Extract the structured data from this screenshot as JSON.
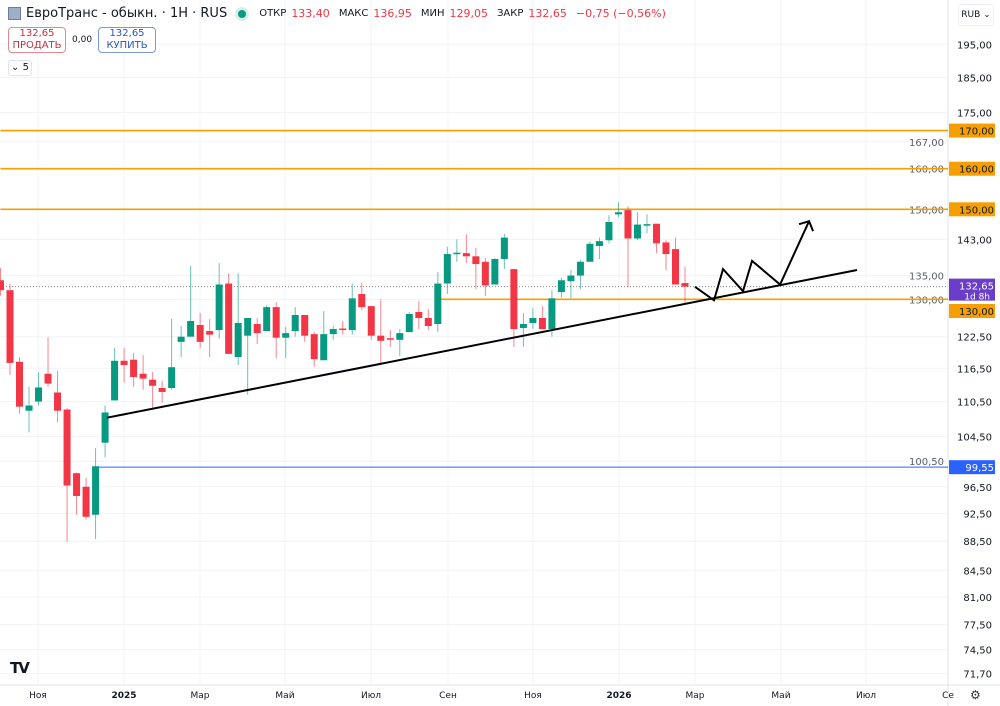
{
  "header": {
    "title": "ЕвроТранс - обыкн. · 1Н · RUS",
    "ohlc": [
      {
        "label": "ОТКР",
        "value": "133,40"
      },
      {
        "label": "МАКС",
        "value": "136,95"
      },
      {
        "label": "МИН",
        "value": "129,05"
      },
      {
        "label": "ЗАКР",
        "value": "132,65"
      }
    ],
    "change": "−0,75 (−0,56%)",
    "market_status_color": "#089981"
  },
  "trade": {
    "sell_price": "132,65",
    "sell_label": "ПРОДАТЬ",
    "spread": "0,00",
    "buy_price": "132,65",
    "buy_label": "КУПИТЬ"
  },
  "indicators_toggle": "5",
  "currency": "RUB",
  "colors": {
    "up": "#089981",
    "down": "#f23645",
    "level": "#f5a000",
    "support": "#2962ff",
    "last_price": "#6a3ec8",
    "trend": "#000000"
  },
  "chart_data": {
    "type": "candlestick",
    "scale": "log",
    "ylim": [
      71,
      199
    ],
    "grid": true,
    "y_ticks": [
      "195,00",
      "185,00",
      "175,00",
      "167,00",
      "160,00",
      "150,00",
      "143,00",
      "135,00",
      "130,00",
      "122,50",
      "116,50",
      "110,50",
      "104,50",
      "100,50",
      "96,50",
      "92,50",
      "88,50",
      "84,50",
      "81,00",
      "77,50",
      "74,50",
      "71,70"
    ],
    "y_tick_values": [
      195,
      185,
      175,
      167,
      160,
      150,
      143,
      135,
      130,
      122.5,
      116.5,
      110.5,
      104.5,
      100.5,
      96.5,
      92.5,
      88.5,
      84.5,
      81,
      77.5,
      74.5,
      71.7
    ],
    "x_ticks": [
      "Ноя",
      "2025",
      "Мар",
      "Май",
      "Июл",
      "Сен",
      "Ноя",
      "2026",
      "Мар",
      "Май",
      "Июл",
      "Се"
    ],
    "candles": [
      [
        134.0,
        136.6,
        130.8,
        131.9
      ],
      [
        131.9,
        133.3,
        115.3,
        117.5
      ],
      [
        117.7,
        118.6,
        108.4,
        109.6
      ],
      [
        108.9,
        113.1,
        105.2,
        109.8
      ],
      [
        110.5,
        115.8,
        109.8,
        113.0
      ],
      [
        115.5,
        122.4,
        113.1,
        113.7
      ],
      [
        112.1,
        116.0,
        106.9,
        108.9
      ],
      [
        109.1,
        109.4,
        88.4,
        96.7
      ],
      [
        98.6,
        98.7,
        92.3,
        95.1
      ],
      [
        96.5,
        97.9,
        91.6,
        92.0
      ],
      [
        92.3,
        102.6,
        88.8,
        99.7
      ],
      [
        103.5,
        109.8,
        101.1,
        108.6
      ],
      [
        110.7,
        120.3,
        110.7,
        117.9
      ],
      [
        117.9,
        120.3,
        113.9,
        117.1
      ],
      [
        118.1,
        119.4,
        113.1,
        114.9
      ],
      [
        115.5,
        119.0,
        112.6,
        114.6
      ],
      [
        114.4,
        115.8,
        109.4,
        113.3
      ],
      [
        112.9,
        114.2,
        110.3,
        112.2
      ],
      [
        112.9,
        126.0,
        112.6,
        116.7
      ],
      [
        121.5,
        124.6,
        118.6,
        122.5
      ],
      [
        122.5,
        137.1,
        122.5,
        125.6
      ],
      [
        124.8,
        127.2,
        120.3,
        121.5
      ],
      [
        123.6,
        126.0,
        118.6,
        122.9
      ],
      [
        123.8,
        137.7,
        122.1,
        133.1
      ],
      [
        133.3,
        135.5,
        119.2,
        119.2
      ],
      [
        118.6,
        135.5,
        117.1,
        125.2
      ],
      [
        122.7,
        126.2,
        111.7,
        126.2
      ],
      [
        125.0,
        126.2,
        121.1,
        123.2
      ],
      [
        123.6,
        128.8,
        123.6,
        128.4
      ],
      [
        128.4,
        129.4,
        118.4,
        122.3
      ],
      [
        122.3,
        124.4,
        118.4,
        123.2
      ],
      [
        123.6,
        128.4,
        122.5,
        126.8
      ],
      [
        126.8,
        126.8,
        121.5,
        122.7
      ],
      [
        123.0,
        123.4,
        116.8,
        118.2
      ],
      [
        118.0,
        127.6,
        118.0,
        123.0
      ],
      [
        123.0,
        124.6,
        121.9,
        124.0
      ],
      [
        124.1,
        125.6,
        122.9,
        123.9
      ],
      [
        123.8,
        133.3,
        122.9,
        130.2
      ],
      [
        131.1,
        133.5,
        127.8,
        128.4
      ],
      [
        128.6,
        128.6,
        121.9,
        122.7
      ],
      [
        122.7,
        130.0,
        117.5,
        121.7
      ],
      [
        122.2,
        123.8,
        120.5,
        122.0
      ],
      [
        121.9,
        124.0,
        118.8,
        123.2
      ],
      [
        123.4,
        127.4,
        123.4,
        127.0
      ],
      [
        127.4,
        129.6,
        124.0,
        126.2
      ],
      [
        126.2,
        128.0,
        123.8,
        124.6
      ],
      [
        125.0,
        135.8,
        123.4,
        133.3
      ],
      [
        133.3,
        141.3,
        131.1,
        139.7
      ],
      [
        139.8,
        143.0,
        138.0,
        140.0
      ],
      [
        139.9,
        144.1,
        137.7,
        139.2
      ],
      [
        139.2,
        141.1,
        132.1,
        137.5
      ],
      [
        138.0,
        138.8,
        130.7,
        132.9
      ],
      [
        133.1,
        138.8,
        133.1,
        138.6
      ],
      [
        138.6,
        144.3,
        136.4,
        143.4
      ],
      [
        136.4,
        136.4,
        120.5,
        124.0
      ],
      [
        124.2,
        127.2,
        120.5,
        125.0
      ],
      [
        125.2,
        128.2,
        124.0,
        126.2
      ],
      [
        126.2,
        128.6,
        124.0,
        124.0
      ],
      [
        124.0,
        131.9,
        122.5,
        130.2
      ],
      [
        131.5,
        134.6,
        130.4,
        134.0
      ],
      [
        133.8,
        136.2,
        130.2,
        135.0
      ],
      [
        135.0,
        138.4,
        132.1,
        138.0
      ],
      [
        138.0,
        142.5,
        138.0,
        142.0
      ],
      [
        141.5,
        143.4,
        138.6,
        142.6
      ],
      [
        142.8,
        148.6,
        142.1,
        147.0
      ],
      [
        148.8,
        151.7,
        148.1,
        149.3
      ],
      [
        149.8,
        150.7,
        132.5,
        143.2
      ],
      [
        143.2,
        149.3,
        142.8,
        146.4
      ],
      [
        146.3,
        148.8,
        144.4,
        146.5
      ],
      [
        146.6,
        146.6,
        139.9,
        142.1
      ],
      [
        142.3,
        142.8,
        136.2,
        139.7
      ],
      [
        140.8,
        143.4,
        133.1,
        133.1
      ],
      [
        133.4,
        136.95,
        129.05,
        132.65
      ]
    ],
    "last_price": {
      "value": 132.65,
      "label": "132,65",
      "countdown": "1d 8h"
    },
    "levels": [
      {
        "price": 170,
        "label": "170,00",
        "color": "#f5a000",
        "from_bar": 0
      },
      {
        "price": 160,
        "label": "160,00",
        "color": "#f5a000",
        "from_bar": 0
      },
      {
        "price": 150,
        "label": "150,00",
        "color": "#f5a000",
        "from_bar": 0
      },
      {
        "price": 130,
        "label": "130,00",
        "color": "#f5a000",
        "from_bar": 46.2
      },
      {
        "price": 99.55,
        "label": "99,55",
        "color": "#2962ff",
        "from_bar": 10.05
      }
    ],
    "trendline": [
      [
        11.2,
        107.7
      ],
      [
        90.1,
        136.2
      ]
    ],
    "projection_arrow": [
      [
        73.05,
        132.6
      ],
      [
        75.05,
        129.8
      ],
      [
        76.0,
        136.4
      ],
      [
        78.1,
        131.7
      ],
      [
        79.05,
        138.2
      ],
      [
        82.0,
        133.1
      ],
      [
        85.05,
        147.2
      ]
    ]
  }
}
